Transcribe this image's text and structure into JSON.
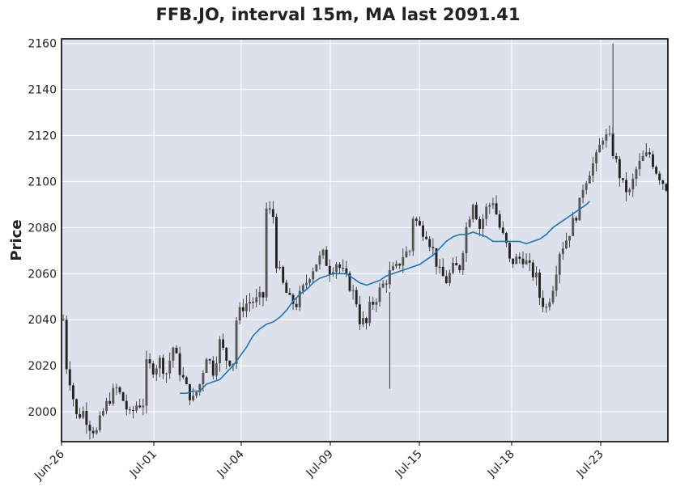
{
  "chart_data": {
    "type": "candlestick",
    "title": "FFB.JO, interval 15m, MA last 2091.41",
    "ylabel": "Price",
    "xlabel": "",
    "ylim": [
      1987,
      2162
    ],
    "yticks": [
      2000,
      2020,
      2040,
      2060,
      2080,
      2100,
      2120,
      2140,
      2160
    ],
    "xticks": [
      "Jun-26",
      "Jul-01",
      "Jul-04",
      "Jul-09",
      "Jul-15",
      "Jul-18",
      "Jul-23"
    ],
    "grid": true,
    "colors": {
      "plot_bg": "#dce1ec",
      "grid": "#ffffff",
      "candle": "#222222",
      "ma_line": "#1f77b4"
    },
    "price_path": [
      [
        0,
        2040
      ],
      [
        0.5,
        2022
      ],
      [
        1,
        2020
      ],
      [
        2,
        2014
      ],
      [
        4,
        1998
      ],
      [
        6,
        2000
      ],
      [
        8,
        1994
      ],
      [
        10,
        1991
      ],
      [
        12,
        2000
      ],
      [
        14,
        2006
      ],
      [
        16,
        2010
      ],
      [
        18,
        2005
      ],
      [
        20,
        1998
      ],
      [
        22,
        2003
      ],
      [
        24,
        2004
      ],
      [
        25,
        2020
      ],
      [
        27,
        2019
      ],
      [
        29,
        2022
      ],
      [
        31,
        2017
      ],
      [
        33,
        2028
      ],
      [
        35,
        2018
      ],
      [
        37,
        2010
      ],
      [
        39,
        2005
      ],
      [
        41,
        2012
      ],
      [
        43,
        2025
      ],
      [
        45,
        2018
      ],
      [
        47,
        2030
      ],
      [
        49,
        2023
      ],
      [
        51,
        2022
      ],
      [
        52,
        2040
      ],
      [
        54,
        2046
      ],
      [
        56,
        2048
      ],
      [
        58,
        2048
      ],
      [
        60,
        2050
      ],
      [
        61,
        2088
      ],
      [
        63,
        2085
      ],
      [
        64,
        2065
      ],
      [
        66,
        2055
      ],
      [
        68,
        2048
      ],
      [
        70,
        2047
      ],
      [
        72,
        2053
      ],
      [
        74,
        2060
      ],
      [
        76,
        2065
      ],
      [
        78,
        2068
      ],
      [
        80,
        2062
      ],
      [
        82,
        2065
      ],
      [
        84,
        2060
      ],
      [
        86,
        2055
      ],
      [
        88,
        2048
      ],
      [
        89,
        2040
      ],
      [
        91,
        2038
      ],
      [
        92,
        2045
      ],
      [
        94,
        2050
      ],
      [
        96,
        2055
      ],
      [
        98,
        2060
      ],
      [
        100,
        2062
      ],
      [
        102,
        2068
      ],
      [
        104,
        2070
      ],
      [
        105,
        2085
      ],
      [
        107,
        2080
      ],
      [
        109,
        2078
      ],
      [
        111,
        2070
      ],
      [
        113,
        2060
      ],
      [
        115,
        2057
      ],
      [
        117,
        2062
      ],
      [
        119,
        2063
      ],
      [
        121,
        2080
      ],
      [
        123,
        2092
      ],
      [
        125,
        2080
      ],
      [
        127,
        2088
      ],
      [
        129,
        2092
      ],
      [
        131,
        2080
      ],
      [
        133,
        2072
      ],
      [
        134,
        2065
      ],
      [
        136,
        2066
      ],
      [
        138,
        2067
      ],
      [
        140,
        2062
      ],
      [
        142,
        2058
      ],
      [
        143,
        2050
      ],
      [
        145,
        2045
      ],
      [
        147,
        2055
      ],
      [
        149,
        2070
      ],
      [
        151,
        2075
      ],
      [
        153,
        2082
      ],
      [
        155,
        2090
      ],
      [
        156,
        2098
      ],
      [
        158,
        2105
      ],
      [
        160,
        2110
      ],
      [
        162,
        2120
      ],
      [
        164,
        2118
      ],
      [
        166,
        2108
      ],
      [
        168,
        2098
      ],
      [
        170,
        2095
      ],
      [
        172,
        2105
      ],
      [
        174,
        2110
      ],
      [
        176,
        2112
      ],
      [
        178,
        2105
      ],
      [
        180,
        2100
      ],
      [
        181,
        2098
      ]
    ],
    "ma_points": [
      [
        35,
        2008
      ],
      [
        37,
        2008
      ],
      [
        39,
        2009
      ],
      [
        41,
        2009
      ],
      [
        43,
        2012
      ],
      [
        45,
        2013
      ],
      [
        47,
        2014
      ],
      [
        49,
        2017
      ],
      [
        51,
        2020
      ],
      [
        53,
        2024
      ],
      [
        55,
        2028
      ],
      [
        57,
        2033
      ],
      [
        59,
        2036
      ],
      [
        61,
        2038
      ],
      [
        63,
        2039
      ],
      [
        65,
        2041
      ],
      [
        67,
        2044
      ],
      [
        69,
        2048
      ],
      [
        71,
        2051
      ],
      [
        73,
        2053
      ],
      [
        75,
        2056
      ],
      [
        77,
        2058
      ],
      [
        79,
        2059
      ],
      [
        81,
        2060
      ],
      [
        83,
        2060
      ],
      [
        85,
        2060
      ],
      [
        87,
        2058
      ],
      [
        89,
        2056
      ],
      [
        91,
        2055
      ],
      [
        93,
        2056
      ],
      [
        95,
        2057
      ],
      [
        97,
        2059
      ],
      [
        99,
        2060
      ],
      [
        101,
        2061
      ],
      [
        103,
        2062
      ],
      [
        105,
        2063
      ],
      [
        107,
        2064
      ],
      [
        109,
        2066
      ],
      [
        111,
        2068
      ],
      [
        113,
        2071
      ],
      [
        115,
        2074
      ],
      [
        117,
        2076
      ],
      [
        119,
        2077
      ],
      [
        121,
        2077
      ],
      [
        123,
        2078
      ],
      [
        125,
        2077
      ],
      [
        127,
        2076
      ],
      [
        129,
        2074
      ],
      [
        131,
        2074
      ],
      [
        133,
        2074
      ],
      [
        135,
        2074
      ],
      [
        137,
        2074
      ],
      [
        139,
        2073
      ],
      [
        141,
        2074
      ],
      [
        143,
        2075
      ],
      [
        145,
        2077
      ],
      [
        147,
        2080
      ],
      [
        149,
        2082
      ],
      [
        151,
        2084
      ],
      [
        153,
        2086
      ],
      [
        155,
        2088
      ],
      [
        157,
        2090
      ],
      [
        158,
        2091.41
      ]
    ]
  }
}
